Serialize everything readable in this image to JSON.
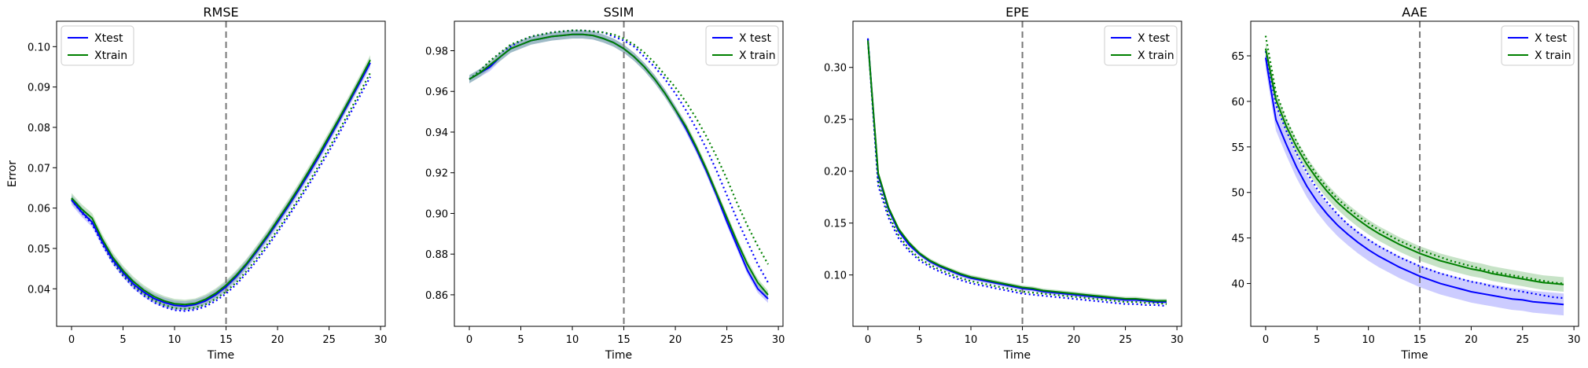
{
  "chart_data": [
    {
      "type": "line",
      "title": "RMSE",
      "xlabel": "Time",
      "ylabel": "Error",
      "xlim": [
        -1.45,
        30.45
      ],
      "ylim": [
        0.0307,
        0.1063
      ],
      "xticks": [
        0,
        5,
        10,
        15,
        20,
        25,
        30
      ],
      "yticks": [
        0.04,
        0.05,
        0.06,
        0.07,
        0.08,
        0.09,
        0.1
      ],
      "ytick_labels": [
        "0.04",
        "0.05",
        "0.06",
        "0.07",
        "0.08",
        "0.09",
        "0.10"
      ],
      "vline_x": 15,
      "legend_position": "top-left",
      "legend": [
        "Xtest",
        "Xtrain"
      ],
      "x": [
        0,
        1,
        2,
        3,
        4,
        5,
        6,
        7,
        8,
        9,
        10,
        11,
        12,
        13,
        14,
        15,
        16,
        17,
        18,
        19,
        20,
        21,
        22,
        23,
        24,
        25,
        26,
        27,
        28,
        29
      ],
      "series": [
        {
          "name": "Xtest",
          "color": "#0000ff",
          "style": "solid",
          "values": [
            0.062,
            0.059,
            0.0565,
            0.0515,
            0.0472,
            0.044,
            0.0412,
            0.0392,
            0.0376,
            0.0366,
            0.0359,
            0.0357,
            0.0361,
            0.037,
            0.0385,
            0.0405,
            0.043,
            0.046,
            0.0493,
            0.0528,
            0.0565,
            0.0603,
            0.0643,
            0.0684,
            0.0727,
            0.0772,
            0.0818,
            0.0865,
            0.0912,
            0.096
          ],
          "band": 0.0012
        },
        {
          "name": "Xtrain",
          "color": "#008000",
          "style": "solid",
          "values": [
            0.0625,
            0.0597,
            0.0575,
            0.0522,
            0.0478,
            0.0445,
            0.0418,
            0.0397,
            0.0381,
            0.037,
            0.0363,
            0.0361,
            0.0364,
            0.0374,
            0.0389,
            0.0409,
            0.0434,
            0.0463,
            0.0497,
            0.0532,
            0.057,
            0.0608,
            0.0648,
            0.069,
            0.0733,
            0.0778,
            0.0823,
            0.087,
            0.0918,
            0.0967
          ],
          "band": 0.0012
        },
        {
          "name": "",
          "color": "#0000ff",
          "style": "dotted",
          "values": [
            0.062,
            0.0588,
            0.056,
            0.051,
            0.0465,
            0.0432,
            0.0404,
            0.0383,
            0.0366,
            0.0355,
            0.0347,
            0.0345,
            0.0348,
            0.0356,
            0.037,
            0.0388,
            0.0411,
            0.0439,
            0.047,
            0.0504,
            0.054,
            0.0577,
            0.0616,
            0.0656,
            0.0698,
            0.0741,
            0.0786,
            0.0832,
            0.0878,
            0.0925
          ]
        },
        {
          "name": "",
          "color": "#008000",
          "style": "dotted",
          "values": [
            0.0623,
            0.0592,
            0.0565,
            0.0515,
            0.047,
            0.0437,
            0.0409,
            0.0388,
            0.0371,
            0.036,
            0.0352,
            0.035,
            0.0353,
            0.0361,
            0.0375,
            0.0393,
            0.0416,
            0.0444,
            0.0476,
            0.051,
            0.0546,
            0.0583,
            0.0622,
            0.0663,
            0.0705,
            0.0749,
            0.0794,
            0.084,
            0.0887,
            0.0935
          ]
        }
      ]
    },
    {
      "type": "line",
      "title": "SSIM",
      "xlabel": "Time",
      "ylabel": "",
      "xlim": [
        -1.45,
        30.45
      ],
      "ylim": [
        0.8445,
        0.9945
      ],
      "xticks": [
        0,
        5,
        10,
        15,
        20,
        25,
        30
      ],
      "yticks": [
        0.86,
        0.88,
        0.9,
        0.92,
        0.94,
        0.96,
        0.98
      ],
      "ytick_labels": [
        "0.86",
        "0.88",
        "0.90",
        "0.92",
        "0.94",
        "0.96",
        "0.98"
      ],
      "vline_x": 15,
      "legend_position": "top-right",
      "legend": [
        "X test",
        "X train"
      ],
      "x": [
        0,
        1,
        2,
        3,
        4,
        5,
        6,
        7,
        8,
        9,
        10,
        11,
        12,
        13,
        14,
        15,
        16,
        17,
        18,
        19,
        20,
        21,
        22,
        23,
        24,
        25,
        26,
        27,
        28,
        29
      ],
      "series": [
        {
          "name": "X test",
          "color": "#0000ff",
          "style": "solid",
          "values": [
            0.966,
            0.969,
            0.972,
            0.977,
            0.981,
            0.983,
            0.985,
            0.986,
            0.987,
            0.9875,
            0.988,
            0.988,
            0.9875,
            0.986,
            0.984,
            0.981,
            0.977,
            0.972,
            0.966,
            0.959,
            0.951,
            0.942,
            0.932,
            0.921,
            0.909,
            0.896,
            0.884,
            0.872,
            0.863,
            0.858
          ],
          "band": 0.002
        },
        {
          "name": "X train",
          "color": "#008000",
          "style": "solid",
          "values": [
            0.966,
            0.969,
            0.973,
            0.977,
            0.981,
            0.983,
            0.985,
            0.986,
            0.987,
            0.9875,
            0.988,
            0.988,
            0.9875,
            0.986,
            0.984,
            0.981,
            0.977,
            0.972,
            0.966,
            0.959,
            0.951,
            0.943,
            0.933,
            0.922,
            0.91,
            0.898,
            0.886,
            0.875,
            0.866,
            0.86
          ],
          "band": 0.002
        },
        {
          "name": "",
          "color": "#0000ff",
          "style": "dotted",
          "values": [
            0.966,
            0.97,
            0.975,
            0.979,
            0.982,
            0.985,
            0.987,
            0.988,
            0.989,
            0.9895,
            0.99,
            0.99,
            0.9895,
            0.989,
            0.987,
            0.985,
            0.982,
            0.977,
            0.972,
            0.966,
            0.959,
            0.951,
            0.942,
            0.932,
            0.921,
            0.909,
            0.897,
            0.886,
            0.875,
            0.866
          ]
        },
        {
          "name": "",
          "color": "#008000",
          "style": "dotted",
          "values": [
            0.966,
            0.97,
            0.975,
            0.979,
            0.983,
            0.985,
            0.987,
            0.988,
            0.989,
            0.9895,
            0.99,
            0.99,
            0.9895,
            0.989,
            0.988,
            0.986,
            0.983,
            0.979,
            0.974,
            0.968,
            0.962,
            0.955,
            0.947,
            0.938,
            0.928,
            0.917,
            0.905,
            0.894,
            0.884,
            0.875
          ]
        }
      ]
    },
    {
      "type": "line",
      "title": "EPE",
      "xlabel": "Time",
      "ylabel": "",
      "xlim": [
        -1.45,
        30.45
      ],
      "ylim": [
        0.0505,
        0.3445
      ],
      "xticks": [
        0,
        5,
        10,
        15,
        20,
        25,
        30
      ],
      "yticks": [
        0.1,
        0.15,
        0.2,
        0.25,
        0.3
      ],
      "ytick_labels": [
        "0.10",
        "0.15",
        "0.20",
        "0.25",
        "0.30"
      ],
      "vline_x": 15,
      "legend_position": "top-right",
      "legend": [
        "X test",
        "X train"
      ],
      "x": [
        0,
        1,
        2,
        3,
        4,
        5,
        6,
        7,
        8,
        9,
        10,
        11,
        12,
        13,
        14,
        15,
        16,
        17,
        18,
        19,
        20,
        21,
        22,
        23,
        24,
        25,
        26,
        27,
        28,
        29
      ],
      "series": [
        {
          "name": "X test",
          "color": "#0000ff",
          "style": "solid",
          "values": [
            0.327,
            0.196,
            0.163,
            0.142,
            0.129,
            0.12,
            0.113,
            0.108,
            0.104,
            0.1,
            0.097,
            0.095,
            0.093,
            0.091,
            0.089,
            0.087,
            0.086,
            0.084,
            0.083,
            0.082,
            0.081,
            0.08,
            0.079,
            0.078,
            0.077,
            0.076,
            0.076,
            0.075,
            0.074,
            0.074
          ],
          "band": 0.002
        },
        {
          "name": "X train",
          "color": "#008000",
          "style": "solid",
          "values": [
            0.326,
            0.198,
            0.165,
            0.144,
            0.131,
            0.121,
            0.114,
            0.109,
            0.105,
            0.101,
            0.098,
            0.096,
            0.094,
            0.092,
            0.09,
            0.088,
            0.087,
            0.085,
            0.084,
            0.083,
            0.082,
            0.081,
            0.08,
            0.079,
            0.078,
            0.077,
            0.077,
            0.076,
            0.075,
            0.075
          ],
          "band": 0.002
        },
        {
          "name": "",
          "color": "#0000ff",
          "style": "dotted",
          "values": [
            0.328,
            0.186,
            0.155,
            0.135,
            0.123,
            0.114,
            0.108,
            0.103,
            0.099,
            0.095,
            0.092,
            0.09,
            0.088,
            0.086,
            0.084,
            0.082,
            0.081,
            0.08,
            0.079,
            0.078,
            0.077,
            0.076,
            0.075,
            0.074,
            0.073,
            0.072,
            0.072,
            0.071,
            0.071,
            0.07
          ]
        },
        {
          "name": "",
          "color": "#008000",
          "style": "dotted",
          "values": [
            0.327,
            0.19,
            0.158,
            0.138,
            0.125,
            0.116,
            0.11,
            0.105,
            0.101,
            0.097,
            0.094,
            0.092,
            0.09,
            0.088,
            0.086,
            0.084,
            0.083,
            0.082,
            0.081,
            0.08,
            0.079,
            0.078,
            0.077,
            0.076,
            0.075,
            0.074,
            0.074,
            0.073,
            0.073,
            0.072
          ]
        }
      ]
    },
    {
      "type": "line",
      "title": "AAE",
      "xlabel": "Time",
      "ylabel": "",
      "xlim": [
        -1.45,
        30.45
      ],
      "ylim": [
        35.3,
        68.8
      ],
      "xticks": [
        0,
        5,
        10,
        15,
        20,
        25,
        30
      ],
      "yticks": [
        40,
        45,
        50,
        55,
        60,
        65
      ],
      "ytick_labels": [
        "40",
        "45",
        "50",
        "55",
        "60",
        "65"
      ],
      "vline_x": 15,
      "legend_position": "top-right",
      "legend": [
        "X test",
        "X train"
      ],
      "x": [
        0,
        1,
        2,
        3,
        4,
        5,
        6,
        7,
        8,
        9,
        10,
        11,
        12,
        13,
        14,
        15,
        16,
        17,
        18,
        19,
        20,
        21,
        22,
        23,
        24,
        25,
        26,
        27,
        28,
        29
      ],
      "series": [
        {
          "name": "X test",
          "color": "#0000ff",
          "style": "solid",
          "values": [
            64.8,
            58.0,
            55.3,
            52.8,
            50.7,
            49.0,
            47.6,
            46.4,
            45.4,
            44.5,
            43.7,
            43.0,
            42.4,
            41.8,
            41.3,
            40.8,
            40.4,
            40.0,
            39.7,
            39.4,
            39.1,
            38.9,
            38.7,
            38.5,
            38.3,
            38.2,
            38.0,
            37.9,
            37.8,
            37.7
          ],
          "band": 1.2
        },
        {
          "name": "X train",
          "color": "#008000",
          "style": "solid",
          "values": [
            65.8,
            60.2,
            57.3,
            55.0,
            53.1,
            51.5,
            50.1,
            48.9,
            47.9,
            47.0,
            46.2,
            45.5,
            44.9,
            44.3,
            43.8,
            43.3,
            42.9,
            42.5,
            42.2,
            41.9,
            41.6,
            41.4,
            41.1,
            40.9,
            40.7,
            40.5,
            40.3,
            40.1,
            40.0,
            39.9
          ],
          "band": 0.8
        },
        {
          "name": "",
          "color": "#0000ff",
          "style": "dotted",
          "values": [
            65.5,
            59.6,
            56.8,
            54.3,
            52.2,
            50.4,
            48.9,
            47.6,
            46.5,
            45.6,
            44.8,
            44.1,
            43.5,
            42.9,
            42.4,
            41.9,
            41.5,
            41.1,
            40.8,
            40.5,
            40.2,
            40.0,
            39.7,
            39.5,
            39.3,
            39.1,
            38.9,
            38.7,
            38.5,
            38.4
          ]
        },
        {
          "name": "",
          "color": "#008000",
          "style": "dotted",
          "values": [
            67.2,
            61.0,
            58.0,
            55.6,
            53.6,
            51.9,
            50.5,
            49.3,
            48.3,
            47.4,
            46.6,
            45.9,
            45.3,
            44.7,
            44.2,
            43.7,
            43.3,
            42.9,
            42.5,
            42.2,
            41.9,
            41.6,
            41.3,
            41.1,
            40.9,
            40.7,
            40.5,
            40.3,
            40.1,
            40.0
          ]
        }
      ]
    }
  ]
}
